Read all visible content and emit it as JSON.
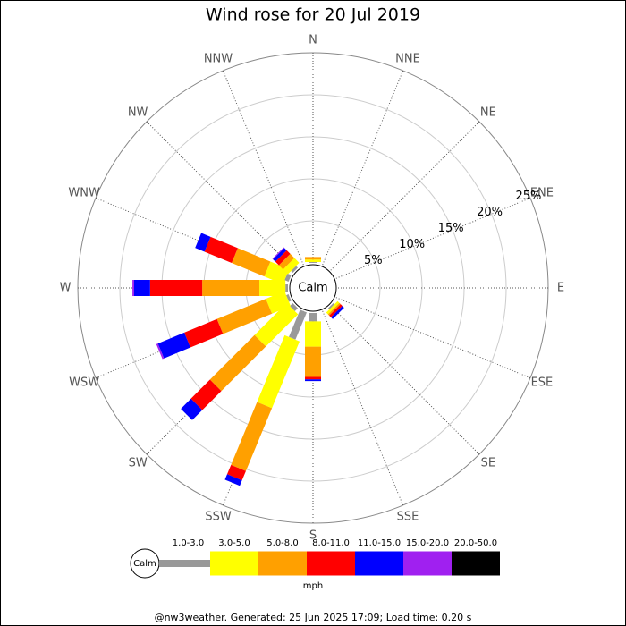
{
  "chart_data": {
    "type": "windrose",
    "title": "Wind rose for 20 Jul 2019",
    "center_label": "Calm",
    "categories": [
      "N",
      "NNE",
      "NE",
      "ENE",
      "E",
      "ESE",
      "SE",
      "SSE",
      "S",
      "SSW",
      "SW",
      "WSW",
      "W",
      "WNW",
      "NW",
      "NNW"
    ],
    "series": [
      {
        "name": "1.0-3.0",
        "color": "#999999",
        "values": [
          0.1,
          0,
          0,
          0,
          0,
          0,
          0.2,
          0,
          1.0,
          3.5,
          0.5,
          0.3,
          0.3,
          0.5,
          0.3,
          0
        ]
      },
      {
        "name": "3.0-5.0",
        "color": "#ffff00",
        "values": [
          0.3,
          0,
          0,
          0,
          0,
          0,
          0.3,
          0,
          3.0,
          8.6,
          5.4,
          2.4,
          3.1,
          2.4,
          0.8,
          0
        ]
      },
      {
        "name": "5.0-8.0",
        "color": "#ffa000",
        "values": [
          0.3,
          0,
          0,
          0,
          0,
          0,
          0.2,
          0,
          3.6,
          8.1,
          7.5,
          6.3,
          6.8,
          4.2,
          0.7,
          0
        ]
      },
      {
        "name": "8.0-11.0",
        "color": "#ff0000",
        "values": [
          0,
          0,
          0,
          0,
          0,
          0,
          0.3,
          0,
          0.3,
          1.2,
          3.2,
          4.2,
          6.2,
          3.5,
          0.6,
          0
        ]
      },
      {
        "name": "11.0-15.0",
        "color": "#0000ff",
        "values": [
          0,
          0,
          0,
          0,
          0,
          0,
          0.3,
          0,
          0.2,
          0.7,
          1.7,
          3.4,
          1.9,
          1.2,
          0.4,
          0
        ]
      },
      {
        "name": "15.0-20.0",
        "color": "#a020f0",
        "values": [
          0,
          0,
          0,
          0,
          0,
          0,
          0,
          0,
          0,
          0,
          0,
          0.2,
          0.2,
          0,
          0.1,
          0
        ]
      },
      {
        "name": "20.0-50.0",
        "color": "#000000",
        "values": [
          0,
          0,
          0,
          0,
          0,
          0,
          0,
          0,
          0,
          0,
          0,
          0,
          0,
          0,
          0,
          0
        ]
      }
    ],
    "rlim": [
      0,
      25
    ],
    "rticks": [
      {
        "value": 5,
        "label": "5%"
      },
      {
        "value": 10,
        "label": "10%"
      },
      {
        "value": 15,
        "label": "15%"
      },
      {
        "value": 20,
        "label": "20%"
      },
      {
        "value": 25,
        "label": "25%"
      }
    ],
    "legend_unit": "mph",
    "footer": "@nw3weather. Generated: 25 Jun 2025 17:09; Load time: 0.20 s"
  }
}
